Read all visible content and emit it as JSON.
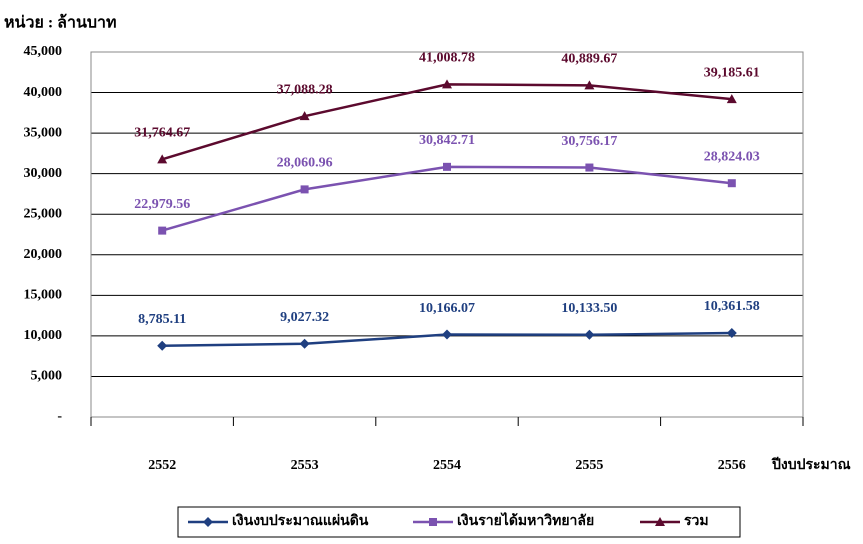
{
  "chart_data": {
    "type": "line",
    "title": "หน่วย : ล้านบาท",
    "x_label": "ปีงบประมาณ",
    "categories": [
      "2552",
      "2553",
      "2554",
      "2555",
      "2556"
    ],
    "series": [
      {
        "name": "เงินงบประมาณแผ่นดิน",
        "color": "#1f3f80",
        "marker": "diamond",
        "values": [
          8785.11,
          9027.32,
          10166.07,
          10133.5,
          10361.58
        ],
        "value_labels": [
          "8,785.11",
          "9,027.32",
          "10,166.07",
          "10,133.50",
          "10,361.58"
        ]
      },
      {
        "name": "เงินรายได้มหาวิทยาลัย",
        "color": "#7b52b0",
        "marker": "square",
        "values": [
          22979.56,
          28060.96,
          30842.71,
          30756.17,
          28824.03
        ],
        "value_labels": [
          "22,979.56",
          "28,060.96",
          "30,842.71",
          "30,756.17",
          "28,824.03"
        ]
      },
      {
        "name": "รวม",
        "color": "#5c0a2e",
        "marker": "triangle",
        "values": [
          31764.67,
          37088.28,
          41008.78,
          40889.67,
          39185.61
        ],
        "value_labels": [
          "31,764.67",
          "37,088.28",
          "41,008.78",
          "40,889.67",
          "39,185.61"
        ]
      }
    ],
    "ylim": [
      0,
      45000
    ],
    "yticks": [
      {
        "value": 0,
        "label": "-"
      },
      {
        "value": 5000,
        "label": "5,000"
      },
      {
        "value": 10000,
        "label": "10,000"
      },
      {
        "value": 15000,
        "label": "15,000"
      },
      {
        "value": 20000,
        "label": "20,000"
      },
      {
        "value": 25000,
        "label": "25,000"
      },
      {
        "value": 30000,
        "label": "30,000"
      },
      {
        "value": 35000,
        "label": "35,000"
      },
      {
        "value": 40000,
        "label": "40,000"
      },
      {
        "value": 45000,
        "label": "45,000"
      }
    ],
    "grid": true,
    "legend": "bottom"
  }
}
